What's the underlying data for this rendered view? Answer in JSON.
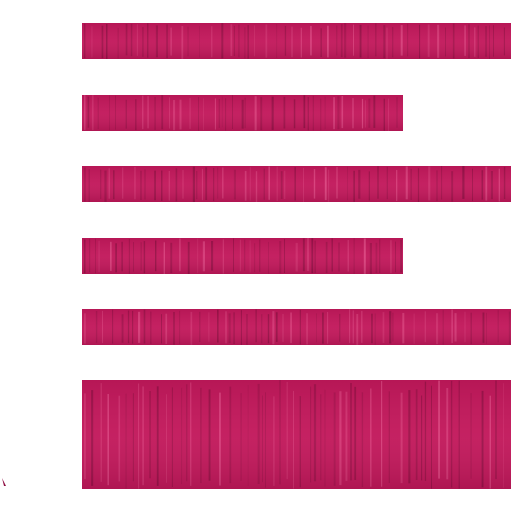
{
  "icon": {
    "name": "align-left-icon",
    "style": "textured wood grain",
    "colors": {
      "base": "#c2185b",
      "dark": "#8e0f42",
      "light": "#e04c86",
      "background": "#ffffff"
    },
    "lines": [
      {
        "length": 1.0
      },
      {
        "length": 0.75
      },
      {
        "length": 1.0
      },
      {
        "length": 0.75
      },
      {
        "length": 1.0
      },
      {
        "length": 1.0,
        "block": true
      }
    ]
  }
}
